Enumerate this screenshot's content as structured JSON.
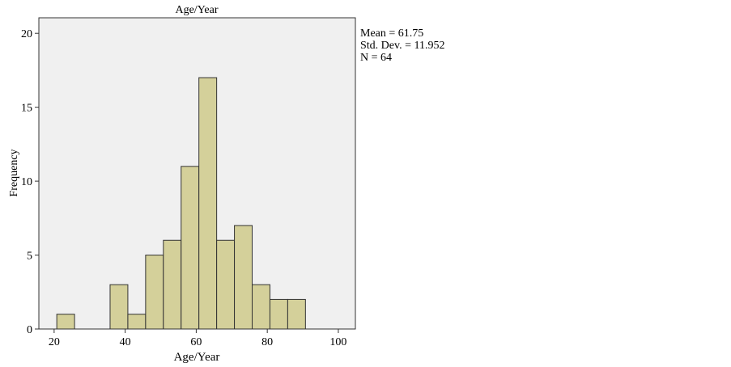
{
  "chart_data": {
    "type": "bar",
    "subtype": "histogram",
    "title": "Age/Year",
    "xlabel": "Age/Year",
    "ylabel": "Frequency",
    "bin_start": 20.75,
    "bin_width": 5,
    "values": [
      1,
      0,
      0,
      3,
      1,
      5,
      6,
      11,
      17,
      6,
      7,
      3,
      2,
      2
    ],
    "xlim": [
      15.7,
      104.8
    ],
    "ylim": [
      0,
      21.05
    ],
    "xticks": [
      20,
      40,
      60,
      80,
      100
    ],
    "yticks": [
      0,
      5,
      10,
      15,
      20
    ],
    "grid": false,
    "stats": {
      "mean": "Mean = 61.75",
      "std_dev": "Std. Dev. = 11.952",
      "n": "N = 64"
    },
    "colors": {
      "bar": "#d4d09a",
      "plot_bg": "#f0f0f0",
      "edge": "#333333"
    }
  }
}
